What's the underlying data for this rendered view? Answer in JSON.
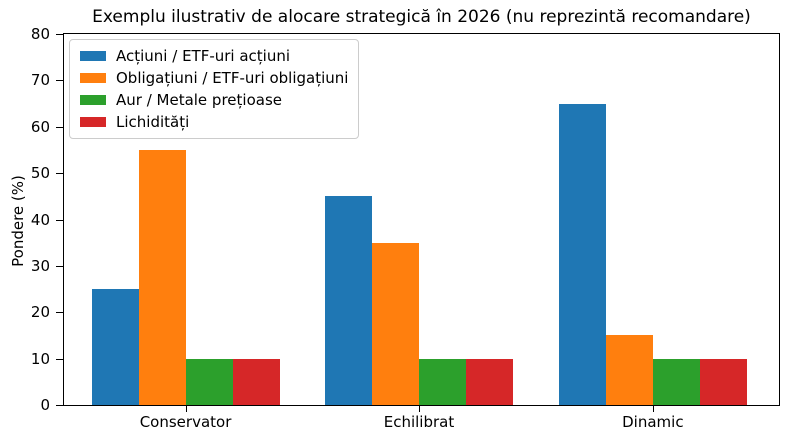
{
  "chart_data": {
    "type": "bar",
    "title": "Exemplu ilustrativ de alocare strategică în 2026 (nu reprezintă recomandare)",
    "xlabel": "",
    "ylabel": "Pondere (%)",
    "ylim": [
      0,
      80
    ],
    "yticks": [
      0,
      10,
      20,
      30,
      40,
      50,
      60,
      70,
      80
    ],
    "grid": false,
    "legend_position": "upper left",
    "categories": [
      "Conservator",
      "Echilibrat",
      "Dinamic"
    ],
    "series": [
      {
        "key": "actiuni",
        "name": "Acțiuni / ETF-uri acțiuni",
        "color": "#1f77b4",
        "values": [
          25,
          45,
          65
        ]
      },
      {
        "key": "obligatiuni",
        "name": "Obligațiuni / ETF-uri obligațiuni",
        "color": "#ff7f0e",
        "values": [
          55,
          35,
          15
        ]
      },
      {
        "key": "aur",
        "name": "Aur / Metale prețioase",
        "color": "#2ca02c",
        "values": [
          10,
          10,
          10
        ]
      },
      {
        "key": "lichiditati",
        "name": "Lichidități",
        "color": "#d62728",
        "values": [
          10,
          10,
          10
        ]
      }
    ]
  }
}
